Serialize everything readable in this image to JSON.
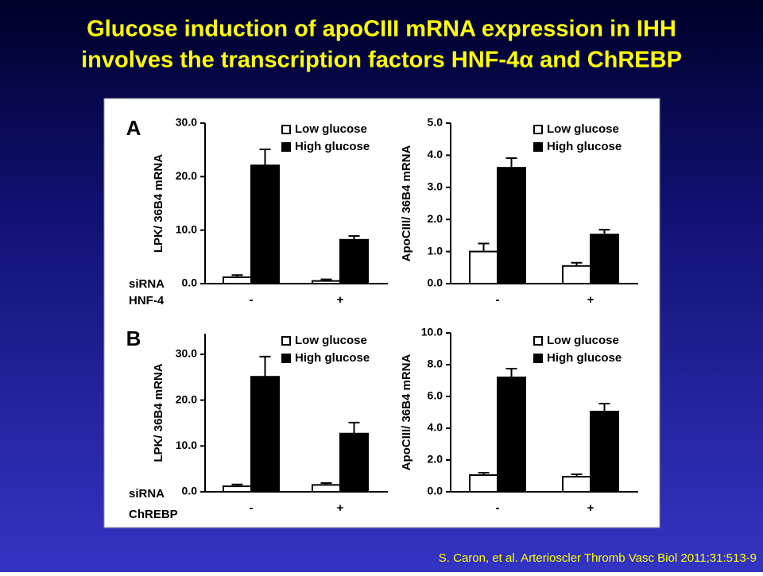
{
  "title": [
    "Glucose induction of apoCIII mRNA expression in IHH",
    "involves the transcription factors HNF-4α and ChREBP"
  ],
  "citation": "S. Caron, et al. Arterioscler Thromb Vasc Biol 2011;31:513-9",
  "chart_data": [
    {
      "type": "bar",
      "panel": "A",
      "x_label": [
        "siRNA",
        "HNF-4"
      ],
      "y_label": "LPK/ 36B4 mRNA",
      "categories": [
        "-",
        "+"
      ],
      "series": [
        {
          "name": "Low  glucose",
          "color": "#ffffff",
          "values": [
            1.2,
            0.5
          ],
          "errors": [
            0.4,
            0.3
          ]
        },
        {
          "name": "High glucose",
          "color": "#000000",
          "values": [
            22.1,
            8.2
          ],
          "errors": [
            3.0,
            0.7
          ]
        }
      ],
      "ylim": [
        0,
        30
      ],
      "yticks": [
        {
          "value": 0,
          "label": "0.0"
        },
        {
          "value": 10,
          "label": "10.0"
        },
        {
          "value": 20,
          "label": "20.0"
        },
        {
          "value": 30,
          "label": "30.0"
        }
      ]
    },
    {
      "type": "bar",
      "y_label": "ApoCIII/ 36B4 mRNA",
      "categories": [
        "-",
        "+"
      ],
      "series": [
        {
          "name": "Low  glucose",
          "color": "#ffffff",
          "values": [
            1.0,
            0.55
          ],
          "errors": [
            0.25,
            0.1
          ]
        },
        {
          "name": "High glucose",
          "color": "#000000",
          "values": [
            3.61,
            1.53
          ],
          "errors": [
            0.3,
            0.15
          ]
        }
      ],
      "ylim": [
        0,
        5
      ],
      "yticks": [
        {
          "value": 0,
          "label": "0.0"
        },
        {
          "value": 1,
          "label": "1.0"
        },
        {
          "value": 2,
          "label": "2.0"
        },
        {
          "value": 3,
          "label": "3.0"
        },
        {
          "value": 4,
          "label": "4.0"
        },
        {
          "value": 5,
          "label": "5.0"
        }
      ]
    },
    {
      "type": "bar",
      "panel": "B",
      "x_label": [
        "siRNA",
        "ChREBP"
      ],
      "y_label": "LPK/ 36B4 mRNA",
      "categories": [
        "-",
        "+"
      ],
      "series": [
        {
          "name": "Low  glucose",
          "color": "#ffffff",
          "values": [
            1.2,
            1.5
          ],
          "errors": [
            0.4,
            0.4
          ]
        },
        {
          "name": "High glucose",
          "color": "#000000",
          "values": [
            25.1,
            12.7
          ],
          "errors": [
            4.4,
            2.4
          ]
        }
      ],
      "ylim": [
        0,
        34.5
      ],
      "yticks": [
        {
          "value": 0,
          "label": "0.0"
        },
        {
          "value": 10,
          "label": "10.0"
        },
        {
          "value": 20,
          "label": "20.0"
        },
        {
          "value": 30,
          "label": "30.0"
        }
      ]
    },
    {
      "type": "bar",
      "y_label": "ApoCIII/ 36B4 mRNA",
      "categories": [
        "-",
        "+"
      ],
      "series": [
        {
          "name": "Low  glucose",
          "color": "#ffffff",
          "values": [
            1.05,
            0.95
          ],
          "errors": [
            0.15,
            0.15
          ]
        },
        {
          "name": "High glucose",
          "color": "#000000",
          "values": [
            7.2,
            5.05
          ],
          "errors": [
            0.55,
            0.5
          ]
        }
      ],
      "ylim": [
        0,
        10
      ],
      "yticks": [
        {
          "value": 0,
          "label": "0.0"
        },
        {
          "value": 2,
          "label": "2.0"
        },
        {
          "value": 4,
          "label": "4.0"
        },
        {
          "value": 6,
          "label": "6.0"
        },
        {
          "value": 8,
          "label": "8.0"
        },
        {
          "value": 10,
          "label": "10.0"
        }
      ]
    }
  ]
}
